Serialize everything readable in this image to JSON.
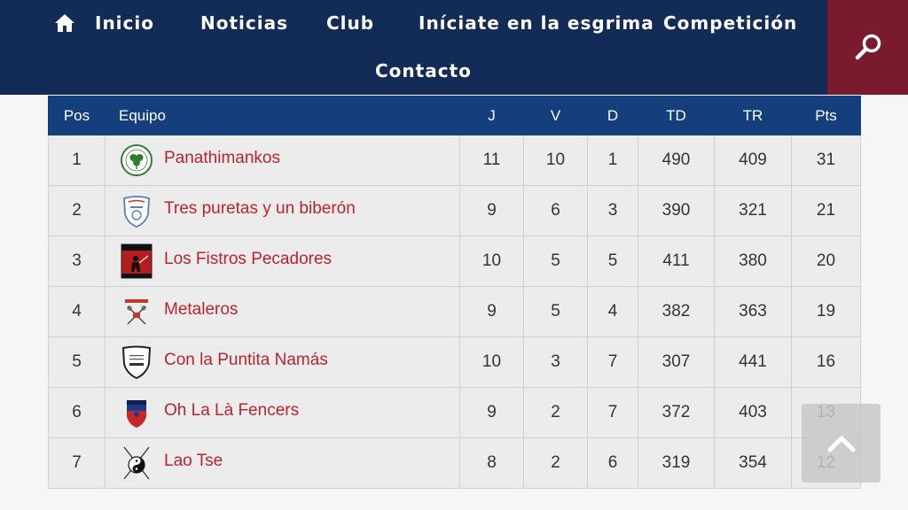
{
  "nav": {
    "items": [
      {
        "label": "Inicio"
      },
      {
        "label": "Noticias"
      },
      {
        "label": "Club"
      },
      {
        "label": "Iníciate en la esgrima"
      },
      {
        "label": "Competición"
      },
      {
        "label": "Contacto"
      }
    ],
    "home_icon": "home-icon",
    "search_icon": "search-icon",
    "colors": {
      "nav_bg": "#132b57",
      "search_bg": "#7a1a2e"
    }
  },
  "table": {
    "headers": {
      "pos": "Pos",
      "team": "Equipo",
      "j": "J",
      "v": "V",
      "d": "D",
      "td": "TD",
      "tr": "TR",
      "pts": "Pts"
    },
    "rows": [
      {
        "pos": "1",
        "team": "Panathimankos",
        "logo": "clover-badge-logo",
        "j": "11",
        "v": "10",
        "d": "1",
        "td": "490",
        "tr": "409",
        "pts": "31"
      },
      {
        "pos": "2",
        "team": "Tres puretas y un biberón",
        "logo": "shield-crest-logo",
        "j": "9",
        "v": "6",
        "d": "3",
        "td": "390",
        "tr": "321",
        "pts": "21"
      },
      {
        "pos": "3",
        "team": "Los Fistros Pecadores",
        "logo": "red-black-fencer-logo",
        "j": "10",
        "v": "5",
        "d": "5",
        "td": "411",
        "tr": "380",
        "pts": "20"
      },
      {
        "pos": "4",
        "team": "Metaleros",
        "logo": "crossed-swords-logo",
        "j": "9",
        "v": "5",
        "d": "4",
        "td": "382",
        "tr": "363",
        "pts": "19"
      },
      {
        "pos": "5",
        "team": "Con la Puntita Namás",
        "logo": "white-shield-logo",
        "j": "10",
        "v": "3",
        "d": "7",
        "td": "307",
        "tr": "441",
        "pts": "16"
      },
      {
        "pos": "6",
        "team": "Oh La Là Fencers",
        "logo": "blue-red-shield-logo",
        "j": "9",
        "v": "2",
        "d": "7",
        "td": "372",
        "tr": "403",
        "pts": "13"
      },
      {
        "pos": "7",
        "team": "Lao Tse",
        "logo": "yin-yang-swords-logo",
        "j": "8",
        "v": "2",
        "d": "6",
        "td": "319",
        "tr": "354",
        "pts": "12"
      }
    ],
    "colors": {
      "header_bg": "#143e7c",
      "team_link": "#b8252f",
      "row_bg": "#ececec"
    }
  },
  "back_to_top": {
    "icon": "chevron-up-icon"
  }
}
